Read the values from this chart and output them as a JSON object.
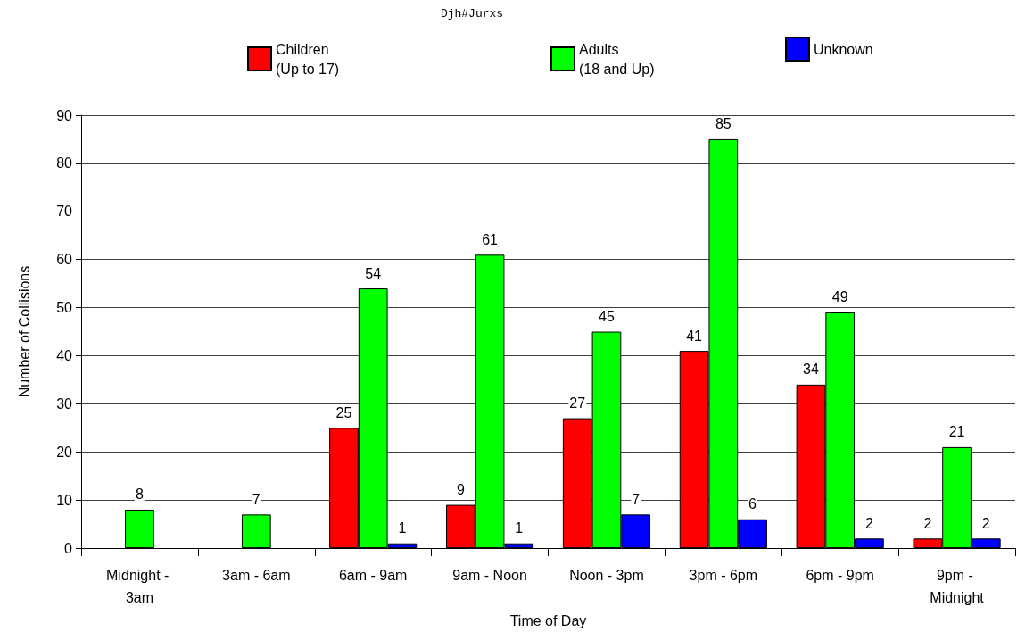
{
  "chart_data": {
    "type": "bar",
    "legend_title": "Djh#Jurxs",
    "xlabel": "Time of Day",
    "ylabel": "Number of Collisions",
    "categories": [
      "Midnight - 3am",
      "3am - 6am",
      "6am - 9am",
      "9am - Noon",
      "Noon - 3pm",
      "3pm - 6pm",
      "6pm - 9pm",
      "9pm - Midnight"
    ],
    "series": [
      {
        "name": "Children (Up to 17)",
        "color": "#ff0000",
        "values": [
          null,
          null,
          25,
          9,
          27,
          41,
          34,
          2
        ]
      },
      {
        "name": "Adults (18 and Up)",
        "color": "#00ff00",
        "values": [
          8,
          7,
          54,
          61,
          45,
          85,
          49,
          21
        ]
      },
      {
        "name": "Unknown",
        "color": "#0000ff",
        "values": [
          null,
          null,
          1,
          1,
          7,
          6,
          2,
          2
        ]
      }
    ],
    "ylim": [
      0,
      90
    ],
    "yticks": [
      0,
      10,
      20,
      30,
      40,
      50,
      60,
      70,
      80,
      90
    ],
    "grid": "y",
    "legend": "top",
    "data_labels": true
  }
}
